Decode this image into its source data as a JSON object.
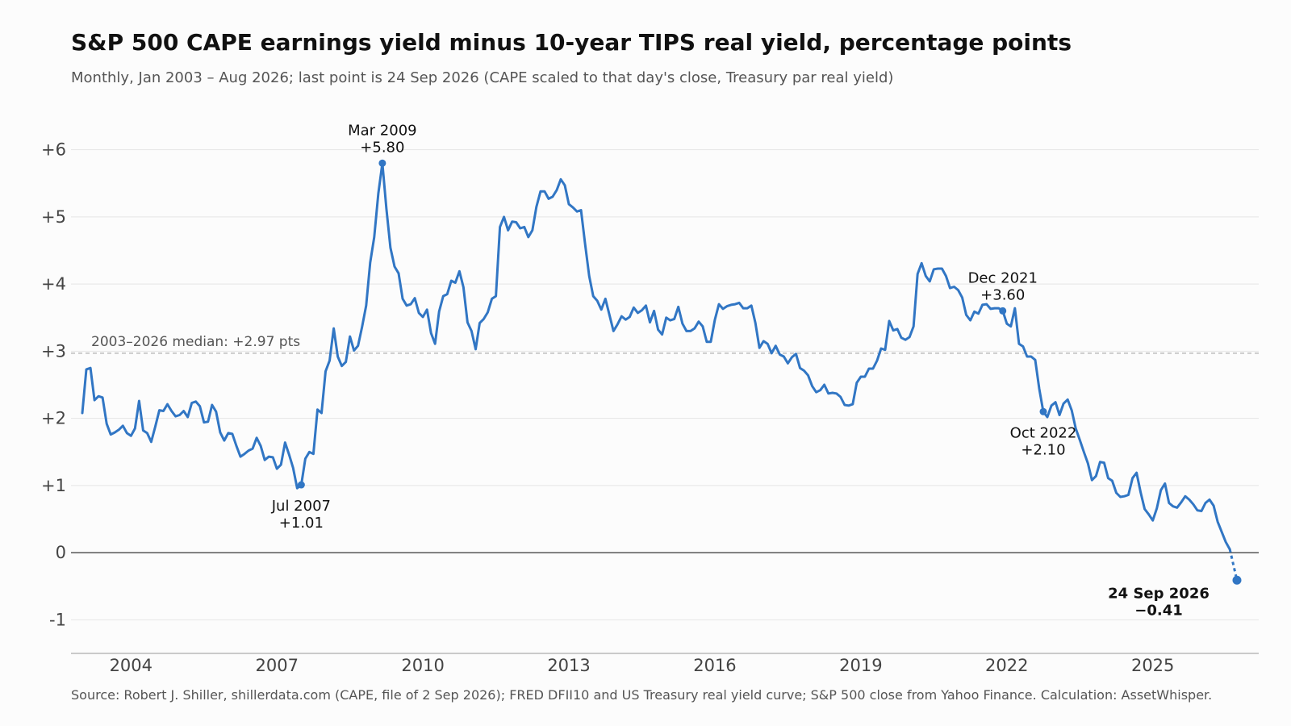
{
  "title": "S&P 500 CAPE earnings yield minus 10-year TIPS real yield, percentage points",
  "subtitle": "Monthly, Jan 2003 – Aug 2026; last point is 24 Sep 2026 (CAPE scaled to that day's close, Treasury par real yield)",
  "source": "Source: Robert J. Shiller, shillerdata.com (CAPE, file of 2 Sep 2026); FRED DFII10 and US Treasury real yield curve; S&P 500 close from Yahoo Finance. Calculation: AssetWhisper.",
  "colors": {
    "line": "#3176c4",
    "median": "#bbbbbb",
    "zero": "#555555",
    "grid": "#e5e5e5",
    "axis": "#999999",
    "tick_text": "#444444",
    "median_text": "#555555"
  },
  "chart_data": {
    "type": "line",
    "xlim": [
      "2003-01",
      "2026-09-24"
    ],
    "ylim": [
      -1.5,
      6.5
    ],
    "grid": "horizontal",
    "x_ticks": [
      {
        "value": "2004-01",
        "label": "2004"
      },
      {
        "value": "2007-01",
        "label": "2007"
      },
      {
        "value": "2010-01",
        "label": "2010"
      },
      {
        "value": "2013-01",
        "label": "2013"
      },
      {
        "value": "2016-01",
        "label": "2016"
      },
      {
        "value": "2019-01",
        "label": "2019"
      },
      {
        "value": "2022-01",
        "label": "2022"
      },
      {
        "value": "2025-01",
        "label": "2025"
      }
    ],
    "y_ticks": [
      {
        "value": 6,
        "label": "+6"
      },
      {
        "value": 5,
        "label": "+5"
      },
      {
        "value": 4,
        "label": "+4"
      },
      {
        "value": 3,
        "label": "+3"
      },
      {
        "value": 2,
        "label": "+2"
      },
      {
        "value": 1,
        "label": "+1"
      },
      {
        "value": 0,
        "label": "0"
      },
      {
        "value": -1,
        "label": "-1"
      }
    ],
    "median": {
      "value": 2.97,
      "label": "2003–2026 median: +2.97 pts"
    },
    "series": [
      {
        "x": [
          "2003-01",
          "2003-02",
          "2003-03",
          "2003-04",
          "2003-05",
          "2003-06",
          "2003-07",
          "2003-08",
          "2003-09",
          "2003-10",
          "2003-11",
          "2003-12",
          "2004-01",
          "2004-02",
          "2004-03",
          "2004-04",
          "2004-05",
          "2004-06",
          "2004-07",
          "2004-08",
          "2004-09",
          "2004-10",
          "2004-11",
          "2004-12",
          "2005-01",
          "2005-02",
          "2005-03",
          "2005-04",
          "2005-05",
          "2005-06",
          "2005-07",
          "2005-08",
          "2005-09",
          "2005-10",
          "2005-11",
          "2005-12",
          "2006-01",
          "2006-02",
          "2006-03",
          "2006-04",
          "2006-05",
          "2006-06",
          "2006-07",
          "2006-08",
          "2006-09",
          "2006-10",
          "2006-11",
          "2006-12",
          "2007-01",
          "2007-02",
          "2007-03",
          "2007-04",
          "2007-05",
          "2007-06",
          "2007-07",
          "2007-08",
          "2007-09",
          "2007-10",
          "2007-11",
          "2007-12",
          "2008-01",
          "2008-02",
          "2008-03",
          "2008-04",
          "2008-05",
          "2008-06",
          "2008-07",
          "2008-08",
          "2008-09",
          "2008-10",
          "2008-11",
          "2008-12",
          "2009-01",
          "2009-02",
          "2009-03",
          "2009-04",
          "2009-05",
          "2009-06",
          "2009-07",
          "2009-08",
          "2009-09",
          "2009-10",
          "2009-11",
          "2009-12",
          "2010-01",
          "2010-02",
          "2010-03",
          "2010-04",
          "2010-05",
          "2010-06",
          "2010-07",
          "2010-08",
          "2010-09",
          "2010-10",
          "2010-11",
          "2010-12",
          "2011-01",
          "2011-02",
          "2011-03",
          "2011-04",
          "2011-05",
          "2011-06",
          "2011-07",
          "2011-08",
          "2011-09",
          "2011-10",
          "2011-11",
          "2011-12",
          "2012-01",
          "2012-02",
          "2012-03",
          "2012-04",
          "2012-05",
          "2012-06",
          "2012-07",
          "2012-08",
          "2012-09",
          "2012-10",
          "2012-11",
          "2012-12",
          "2013-01",
          "2013-02",
          "2013-03",
          "2013-04",
          "2013-05",
          "2013-06",
          "2013-07",
          "2013-08",
          "2013-09",
          "2013-10",
          "2013-11",
          "2013-12",
          "2014-01",
          "2014-02",
          "2014-03",
          "2014-04",
          "2014-05",
          "2014-06",
          "2014-07",
          "2014-08",
          "2014-09",
          "2014-10",
          "2014-11",
          "2014-12",
          "2015-01",
          "2015-02",
          "2015-03",
          "2015-04",
          "2015-05",
          "2015-06",
          "2015-07",
          "2015-08",
          "2015-09",
          "2015-10",
          "2015-11",
          "2015-12",
          "2016-01",
          "2016-02",
          "2016-03",
          "2016-04",
          "2016-05",
          "2016-06",
          "2016-07",
          "2016-08",
          "2016-09",
          "2016-10",
          "2016-11",
          "2016-12",
          "2017-01",
          "2017-02",
          "2017-03",
          "2017-04",
          "2017-05",
          "2017-06",
          "2017-07",
          "2017-08",
          "2017-09",
          "2017-10",
          "2017-11",
          "2017-12",
          "2018-01",
          "2018-02",
          "2018-03",
          "2018-04",
          "2018-05",
          "2018-06",
          "2018-07",
          "2018-08",
          "2018-09",
          "2018-10",
          "2018-11",
          "2018-12",
          "2019-01",
          "2019-02",
          "2019-03",
          "2019-04",
          "2019-05",
          "2019-06",
          "2019-07",
          "2019-08",
          "2019-09",
          "2019-10",
          "2019-11",
          "2019-12",
          "2020-01",
          "2020-02",
          "2020-03",
          "2020-04",
          "2020-05",
          "2020-06",
          "2020-07",
          "2020-08",
          "2020-09",
          "2020-10",
          "2020-11",
          "2020-12",
          "2021-01",
          "2021-02",
          "2021-03",
          "2021-04",
          "2021-05",
          "2021-06",
          "2021-07",
          "2021-08",
          "2021-09",
          "2021-10",
          "2021-11",
          "2021-12",
          "2022-01",
          "2022-02",
          "2022-03",
          "2022-04",
          "2022-05",
          "2022-06",
          "2022-07",
          "2022-08",
          "2022-09",
          "2022-10",
          "2022-11",
          "2022-12",
          "2023-01",
          "2023-02",
          "2023-03",
          "2023-04",
          "2023-05",
          "2023-06",
          "2023-07",
          "2023-08",
          "2023-09",
          "2023-10",
          "2023-11",
          "2023-12",
          "2024-01",
          "2024-02",
          "2024-03",
          "2024-04",
          "2024-05",
          "2024-06",
          "2024-07",
          "2024-08",
          "2024-09",
          "2024-10",
          "2024-11",
          "2024-12",
          "2025-01",
          "2025-02",
          "2025-03",
          "2025-04",
          "2025-05",
          "2025-06",
          "2025-07",
          "2025-08",
          "2025-09",
          "2025-10",
          "2025-11",
          "2025-12",
          "2026-01",
          "2026-02",
          "2026-03",
          "2026-04",
          "2026-05",
          "2026-06",
          "2026-07",
          "2026-08"
        ],
        "y": [
          2.08,
          2.73,
          2.75,
          2.27,
          2.33,
          2.31,
          1.92,
          1.76,
          1.79,
          1.83,
          1.89,
          1.78,
          1.74,
          1.85,
          2.26,
          1.82,
          1.78,
          1.65,
          1.88,
          2.12,
          2.11,
          2.21,
          2.11,
          2.03,
          2.05,
          2.11,
          2.02,
          2.23,
          2.25,
          2.18,
          1.94,
          1.95,
          2.2,
          2.1,
          1.79,
          1.67,
          1.78,
          1.77,
          1.59,
          1.43,
          1.47,
          1.52,
          1.55,
          1.71,
          1.59,
          1.38,
          1.43,
          1.42,
          1.25,
          1.31,
          1.64,
          1.46,
          1.26,
          0.96,
          1.01,
          1.4,
          1.5,
          1.47,
          2.13,
          2.08,
          2.7,
          2.86,
          3.34,
          2.92,
          2.78,
          2.84,
          3.22,
          3.01,
          3.08,
          3.36,
          3.68,
          4.32,
          4.7,
          5.35,
          5.8,
          5.12,
          4.54,
          4.26,
          4.16,
          3.78,
          3.68,
          3.7,
          3.79,
          3.57,
          3.51,
          3.62,
          3.27,
          3.11,
          3.59,
          3.82,
          3.85,
          4.05,
          4.02,
          4.19,
          3.95,
          3.43,
          3.3,
          3.03,
          3.42,
          3.48,
          3.58,
          3.78,
          3.82,
          4.85,
          5.0,
          4.8,
          4.93,
          4.92,
          4.83,
          4.85,
          4.7,
          4.8,
          5.15,
          5.38,
          5.38,
          5.27,
          5.3,
          5.4,
          5.56,
          5.47,
          5.19,
          5.14,
          5.08,
          5.1,
          4.6,
          4.12,
          3.82,
          3.75,
          3.62,
          3.78,
          3.54,
          3.3,
          3.4,
          3.52,
          3.47,
          3.51,
          3.65,
          3.57,
          3.61,
          3.68,
          3.43,
          3.6,
          3.32,
          3.25,
          3.5,
          3.46,
          3.48,
          3.66,
          3.41,
          3.3,
          3.3,
          3.34,
          3.44,
          3.37,
          3.14,
          3.14,
          3.47,
          3.7,
          3.63,
          3.67,
          3.69,
          3.7,
          3.72,
          3.64,
          3.64,
          3.68,
          3.42,
          3.05,
          3.15,
          3.11,
          2.97,
          3.08,
          2.95,
          2.92,
          2.82,
          2.91,
          2.96,
          2.75,
          2.71,
          2.64,
          2.48,
          2.39,
          2.42,
          2.5,
          2.37,
          2.38,
          2.37,
          2.32,
          2.2,
          2.19,
          2.21,
          2.53,
          2.62,
          2.62,
          2.74,
          2.74,
          2.86,
          3.04,
          3.02,
          3.45,
          3.31,
          3.33,
          3.2,
          3.17,
          3.21,
          3.37,
          4.15,
          4.31,
          4.12,
          4.04,
          4.22,
          4.23,
          4.23,
          4.12,
          3.94,
          3.96,
          3.91,
          3.8,
          3.54,
          3.46,
          3.59,
          3.56,
          3.69,
          3.7,
          3.63,
          3.64,
          3.64,
          3.6,
          3.41,
          3.37,
          3.64,
          3.11,
          3.07,
          2.92,
          2.92,
          2.87,
          2.44,
          2.1,
          2.02,
          2.19,
          2.24,
          2.05,
          2.22,
          2.28,
          2.12,
          1.85,
          1.68,
          1.5,
          1.33,
          1.08,
          1.14,
          1.35,
          1.34,
          1.11,
          1.07,
          0.89,
          0.83,
          0.84,
          0.86,
          1.11,
          1.19,
          0.9,
          0.65,
          0.57,
          0.48,
          0.66,
          0.93,
          1.03,
          0.74,
          0.69,
          0.67,
          0.75,
          0.84,
          0.79,
          0.72,
          0.63,
          0.62,
          0.74,
          0.79,
          0.7,
          0.46,
          0.31,
          0.16,
          0.05
        ]
      }
    ],
    "last_point": {
      "x": "2026-09-24",
      "y": -0.41
    },
    "annotations": [
      {
        "x": "2007-07",
        "y": 1.01,
        "date": "Jul 2007",
        "value": "+1.01",
        "position": "below",
        "bold": false
      },
      {
        "x": "2009-03",
        "y": 5.8,
        "date": "Mar 2009",
        "value": "+5.80",
        "position": "above",
        "bold": false
      },
      {
        "x": "2021-12",
        "y": 3.6,
        "date": "Dec 2021",
        "value": "+3.60",
        "position": "above",
        "bold": false
      },
      {
        "x": "2022-10",
        "y": 2.1,
        "date": "Oct 2022",
        "value": "+2.10",
        "position": "below",
        "bold": false
      },
      {
        "x": "2026-09-24",
        "y": -0.41,
        "date": "24 Sep 2026",
        "value": "−0.41",
        "position": "below-left",
        "bold": true
      }
    ]
  }
}
